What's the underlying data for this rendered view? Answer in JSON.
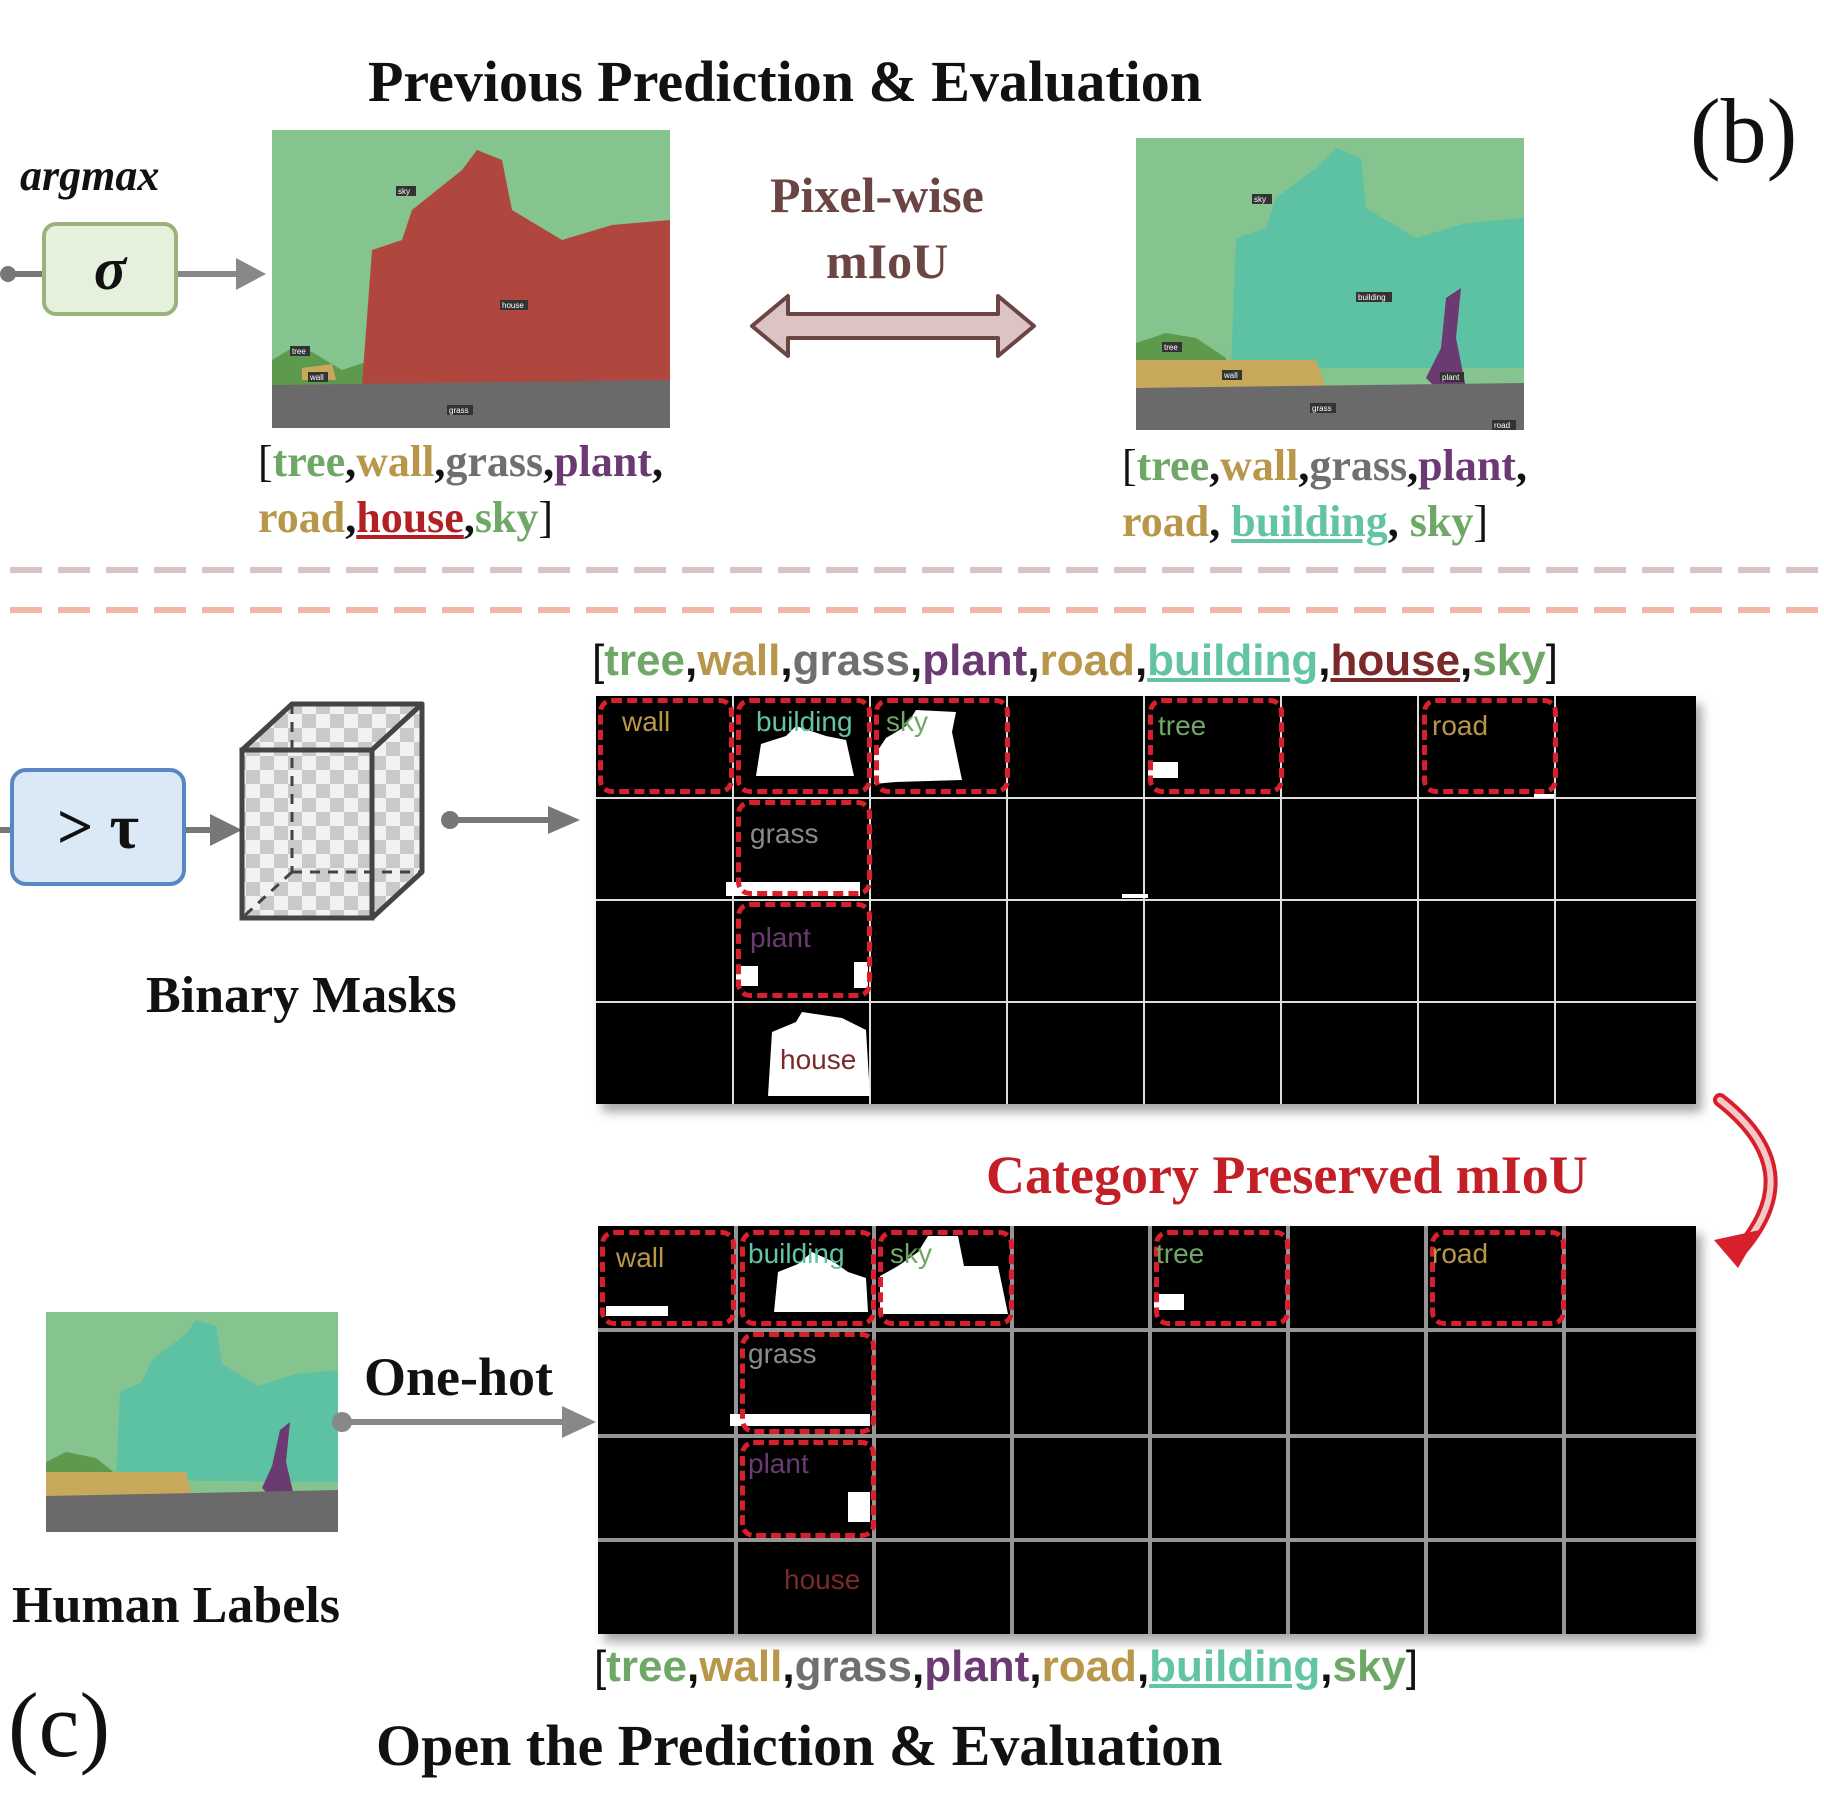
{
  "panel_b": {
    "title": "Previous Prediction & Evaluation",
    "tag": "(b)",
    "argmax_label": "argmax",
    "sigma_symbol": "σ",
    "metric_label_line1": "Pixel-wise",
    "metric_label_line2": "mIoU",
    "left_list_line1": [
      "tree",
      "wall",
      "grass",
      "plant"
    ],
    "left_list_line2": [
      "road",
      "house",
      "sky"
    ],
    "right_list_line1": [
      "tree",
      "wall",
      "grass",
      "plant"
    ],
    "right_list_line2": [
      "road",
      "building",
      "sky"
    ],
    "seg_labels_left": [
      "sky",
      "house",
      "tree",
      "wall",
      "grass"
    ],
    "seg_labels_right": [
      "sky",
      "building",
      "tree",
      "wall",
      "plant",
      "grass",
      "road"
    ]
  },
  "panel_c": {
    "tag": "(c)",
    "threshold_symbol": "> τ",
    "binary_masks_label": "Binary Masks",
    "top_list": [
      "tree",
      "wall",
      "grass",
      "plant",
      "road",
      "building",
      "house",
      "sky"
    ],
    "top_grid_cells": [
      "wall",
      "building",
      "sky",
      "tree",
      "road",
      "grass",
      "plant",
      "house"
    ],
    "cp_miou_label": "Category Preserved mIoU",
    "one_hot_label": "One-hot",
    "human_labels_label": "Human Labels",
    "bottom_grid_cells": [
      "wall",
      "building",
      "sky",
      "tree",
      "road",
      "grass",
      "plant",
      "house"
    ],
    "bottom_list": [
      "tree",
      "wall",
      "grass",
      "plant",
      "road",
      "building",
      "sky"
    ],
    "footer_title": "Open the Prediction & Evaluation"
  },
  "colors": {
    "tree": "#6fa866",
    "wall": "#b8964a",
    "grass": "#6f6f6f",
    "plant": "#6c3a73",
    "road": "#b8964a",
    "building": "#62c4a0",
    "house": "#b21f24",
    "house_top": "#7a2a2a",
    "sky": "#6fa866",
    "dash_red": "#d8202c",
    "sigma_box": "#e5f1dc",
    "threshold_box": "#dbe8f6"
  }
}
